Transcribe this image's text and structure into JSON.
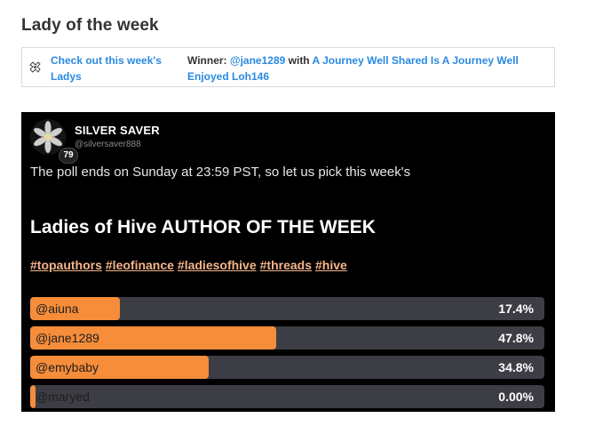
{
  "section": {
    "title": "Lady of the week"
  },
  "winner_box": {
    "icon": "ladies-logo-icon",
    "link_text": "Check out this week's Ladys",
    "winner_prefix": "Winner: ",
    "winner_user": "@jane1289",
    "winner_with": " with ",
    "winner_post": "A Journey Well Shared Is A Journey Well Enjoyed Loh146"
  },
  "post": {
    "author": {
      "name": "SILVER SAVER",
      "handle": "@silversaver888",
      "reputation": "79"
    },
    "body": "The poll ends on Sunday at 23:59 PST, so let us pick this week's",
    "heading": "Ladies of Hive AUTHOR OF THE WEEK",
    "tags": [
      "#topauthors",
      "#leofinance",
      "#ladiesofhive",
      "#threads",
      "#hive"
    ]
  },
  "poll": {
    "options": [
      {
        "label": "@aiuna",
        "percent_text": "17.4%",
        "fraction": 0.174
      },
      {
        "label": "@jane1289",
        "percent_text": "47.8%",
        "fraction": 0.478
      },
      {
        "label": "@emybaby",
        "percent_text": "34.8%",
        "fraction": 0.348
      },
      {
        "label": "@maryed",
        "percent_text": "0.00%",
        "fraction": 0.0
      }
    ]
  },
  "colors": {
    "accent_orange": "#f58d3a",
    "link_blue": "#2a8ae0",
    "tag_color": "#f5b58a",
    "poll_track": "#3d3d45"
  }
}
